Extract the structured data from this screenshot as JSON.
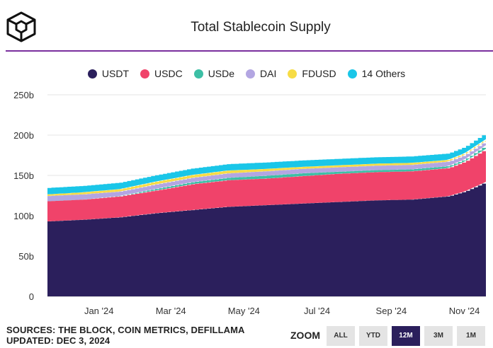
{
  "header": {
    "title": "Total Stablecoin Supply",
    "logo_icon": "the-block-cube-logo"
  },
  "colors": {
    "accent_rule": "#7a2f9e",
    "zoom_active": "#2b1f5c"
  },
  "chart_data": {
    "type": "area",
    "stacked": true,
    "title": "Total Stablecoin Supply",
    "xlabel": "",
    "ylabel": "",
    "x": [
      "2023-12-03",
      "2024-01-01",
      "2024-02-01",
      "2024-03-01",
      "2024-04-01",
      "2024-05-01",
      "2024-06-01",
      "2024-07-01",
      "2024-08-01",
      "2024-09-01",
      "2024-10-01",
      "2024-11-01",
      "2024-11-15",
      "2024-12-03"
    ],
    "ylim": [
      0,
      250
    ],
    "ytick_values": [
      0,
      50,
      100,
      150,
      200,
      250
    ],
    "ytick_labels": [
      "0",
      "50b",
      "100b",
      "150b",
      "200b",
      "250b"
    ],
    "xtick_dates": [
      "2024-01-15",
      "2024-03-15",
      "2024-05-15",
      "2024-07-15",
      "2024-09-15",
      "2024-11-15"
    ],
    "xtick_labels": [
      "Jan '24",
      "Mar '24",
      "May '24",
      "Jul '24",
      "Sep '24",
      "Nov '24"
    ],
    "series": [
      {
        "name": "USDT",
        "color": "#2b1f5c",
        "values": [
          93,
          95,
          98,
          103,
          107,
          111,
          113,
          115,
          117,
          119,
          120,
          124,
          130,
          142
        ]
      },
      {
        "name": "USDC",
        "color": "#f0436a",
        "values": [
          25,
          25,
          26,
          28,
          32,
          33,
          33,
          34,
          35,
          35,
          35,
          35,
          37,
          41
        ]
      },
      {
        "name": "USDe",
        "color": "#3dbfa5",
        "values": [
          0,
          0,
          0.5,
          2,
          2.5,
          3,
          3.5,
          3.5,
          2.5,
          2.5,
          2.5,
          2.5,
          2.7,
          4.5
        ]
      },
      {
        "name": "DAI",
        "color": "#b3a6e2",
        "values": [
          6.5,
          6.5,
          5.5,
          5.5,
          5.5,
          5.5,
          5.5,
          5.5,
          5.5,
          5.5,
          5.5,
          5.5,
          5.5,
          5.5
        ]
      },
      {
        "name": "FDUSD",
        "color": "#f7dc45",
        "values": [
          2,
          2.5,
          3,
          3.5,
          3.5,
          3.5,
          3,
          2.5,
          2.5,
          2.5,
          2.5,
          2.2,
          2.2,
          2
        ]
      },
      {
        "name": "14 Others",
        "color": "#1ac6e8",
        "values": [
          8,
          8,
          8,
          8,
          8,
          8,
          8,
          8,
          8,
          8,
          8,
          8,
          8,
          8
        ]
      }
    ],
    "grid": true,
    "legend_position": "top-center"
  },
  "footer": {
    "sources": "SOURCES: THE BLOCK, COIN METRICS, DEFILLAMA",
    "updated": "UPDATED: DEC 3, 2024"
  },
  "zoom": {
    "label": "ZOOM",
    "buttons": [
      "ALL",
      "YTD",
      "12M",
      "3M",
      "1M"
    ],
    "active": "12M"
  }
}
